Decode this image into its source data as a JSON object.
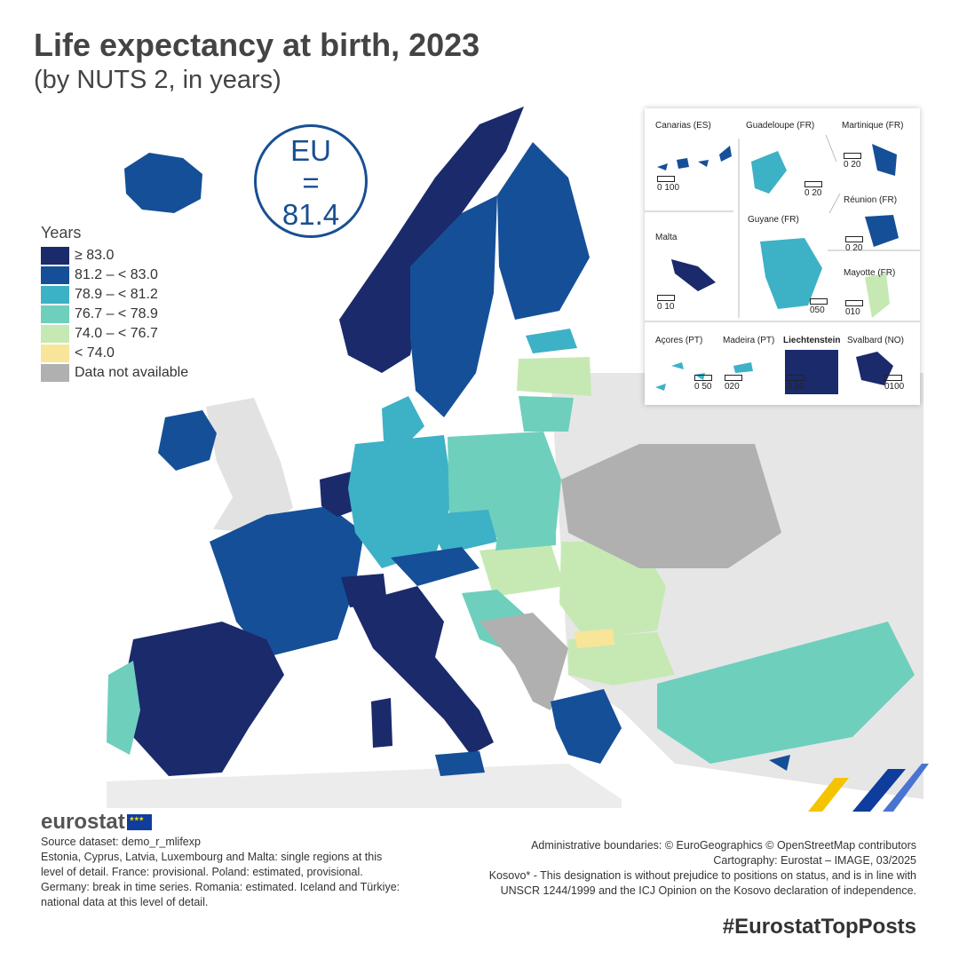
{
  "title": "Life expectancy at birth, 2023",
  "subtitle": "(by NUTS 2, in years)",
  "eu_badge": {
    "label": "EU",
    "eq": "=",
    "value": "81.4"
  },
  "legend": {
    "title": "Years",
    "items": [
      {
        "label": "≥ 83.0",
        "color": "#1b2a6b"
      },
      {
        "label": "81.2 – < 83.0",
        "color": "#154f98"
      },
      {
        "label": "78.9 – < 81.2",
        "color": "#3db1c6"
      },
      {
        "label": "76.7 – < 78.9",
        "color": "#6ecfbd"
      },
      {
        "label": "74.0 – < 76.7",
        "color": "#c6e9b3"
      },
      {
        "label": "< 74.0",
        "color": "#f8e59a"
      },
      {
        "label": "Data not available",
        "color": "#b0b0b0"
      }
    ]
  },
  "insets": {
    "canarias": {
      "name": "Canarias (ES)",
      "scale": "0  100"
    },
    "guadeloupe": {
      "name": "Guadeloupe (FR)",
      "scale": "0 20"
    },
    "martinique": {
      "name": "Martinique (FR)",
      "scale": "0 20"
    },
    "malta": {
      "name": "Malta",
      "scale": "0  10"
    },
    "guyane": {
      "name": "Guyane (FR)",
      "scale": "050"
    },
    "reunion": {
      "name": "Réunion (FR)",
      "scale": "0 20"
    },
    "mayotte": {
      "name": "Mayotte (FR)",
      "scale": "010"
    },
    "acores": {
      "name": "Açores (PT)",
      "scale": "0 50"
    },
    "madeira": {
      "name": "Madeira (PT)",
      "scale": "020"
    },
    "liechtenstein": {
      "name": "Liechtenstein",
      "scale": "0 10"
    },
    "svalbard": {
      "name": "Svalbard (NO)",
      "scale": "0100"
    }
  },
  "footer": {
    "logo": "eurostat",
    "source_lines": [
      "Source dataset: demo_r_mlifexp",
      "Estonia, Cyprus, Latvia, Luxembourg and Malta: single regions at this",
      "level of detail. France: provisional. Poland: estimated, provisional.",
      "Germany: break in time series. Romania: estimated. Iceland and Türkiye:",
      "national data at this level of detail."
    ],
    "credit_lines": [
      "Administrative boundaries: © EuroGeographics © OpenStreetMap contributors",
      "Cartography: Eurostat – IMAGE, 03/2025",
      "Kosovo* - This designation is without prejudice to positions on status, and is in line with",
      "UNSCR 1244/1999 and the ICJ Opinion on the Kosovo declaration of independence."
    ],
    "hashtag": "#EurostatTopPosts"
  }
}
